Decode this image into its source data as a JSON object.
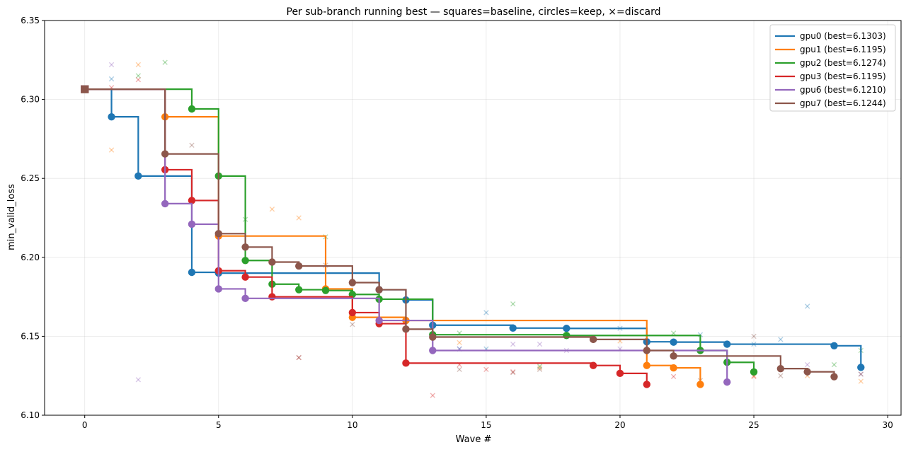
{
  "chart_data": {
    "type": "line",
    "title": "Per sub-branch running best — squares=baseline, circles=keep, ×=discard",
    "xlabel": "Wave #",
    "ylabel": "min_valid_loss",
    "xlim": [
      -1.5,
      30.5
    ],
    "ylim": [
      6.1,
      6.35
    ],
    "xticks": [
      0,
      5,
      10,
      15,
      20,
      25,
      30
    ],
    "yticks": [
      6.1,
      6.15,
      6.2,
      6.25,
      6.3,
      6.35
    ],
    "xtick_labels": [
      "0",
      "5",
      "10",
      "15",
      "20",
      "25",
      "30"
    ],
    "ytick_labels": [
      "6.10",
      "6.15",
      "6.20",
      "6.25",
      "6.30",
      "6.35"
    ],
    "grid": true,
    "legend_position": "top-right",
    "baseline": {
      "x": 0,
      "y": 6.3065
    },
    "series": [
      {
        "name": "gpu0 (best=6.1303)",
        "color": "#1f77b4",
        "keeps": [
          [
            1,
            6.289
          ],
          [
            2,
            6.2515
          ],
          [
            4,
            6.1905
          ],
          [
            5,
            6.19
          ],
          [
            11,
            6.1795
          ],
          [
            12,
            6.173
          ],
          [
            13,
            6.157
          ],
          [
            16,
            6.1552
          ],
          [
            18,
            6.155
          ],
          [
            21,
            6.1465
          ],
          [
            22,
            6.1463
          ],
          [
            24,
            6.145
          ],
          [
            28,
            6.144
          ],
          [
            29,
            6.1303
          ]
        ],
        "discards": [
          [
            1,
            6.313
          ],
          [
            15,
            6.165
          ],
          [
            23,
            6.151
          ],
          [
            25,
            6.145
          ],
          [
            26,
            6.148
          ],
          [
            27,
            6.169
          ],
          [
            14,
            6.142
          ],
          [
            15,
            6.142
          ],
          [
            20,
            6.155
          ]
        ]
      },
      {
        "name": "gpu1 (best=6.1195)",
        "color": "#ff7f0e",
        "keeps": [
          [
            3,
            6.289
          ],
          [
            5,
            6.2135
          ],
          [
            9,
            6.18
          ],
          [
            10,
            6.162
          ],
          [
            12,
            6.16
          ],
          [
            21,
            6.1315
          ],
          [
            22,
            6.13
          ],
          [
            23,
            6.1195
          ]
        ],
        "discards": [
          [
            1,
            6.268
          ],
          [
            2,
            6.322
          ],
          [
            7,
            6.2305
          ],
          [
            8,
            6.225
          ],
          [
            14,
            6.146
          ],
          [
            17,
            6.13
          ],
          [
            25,
            6.125
          ],
          [
            27,
            6.125
          ],
          [
            29,
            6.1215
          ],
          [
            20,
            6.147
          ]
        ]
      },
      {
        "name": "gpu2 (best=6.1274)",
        "color": "#2ca02c",
        "keeps": [
          [
            4,
            6.294
          ],
          [
            5,
            6.2515
          ],
          [
            6,
            6.198
          ],
          [
            7,
            6.183
          ],
          [
            8,
            6.1795
          ],
          [
            9,
            6.179
          ],
          [
            10,
            6.1765
          ],
          [
            11,
            6.1735
          ],
          [
            13,
            6.151
          ],
          [
            18,
            6.1505
          ],
          [
            23,
            6.141
          ],
          [
            24,
            6.1335
          ],
          [
            25,
            6.1274
          ]
        ],
        "discards": [
          [
            2,
            6.315
          ],
          [
            3,
            6.3235
          ],
          [
            6,
            6.224
          ],
          [
            9,
            6.213
          ],
          [
            16,
            6.1705
          ],
          [
            22,
            6.152
          ],
          [
            28,
            6.132
          ],
          [
            29,
            6.141
          ],
          [
            14,
            6.152
          ],
          [
            17,
            6.131
          ]
        ]
      },
      {
        "name": "gpu3 (best=6.1195)",
        "color": "#d62728",
        "keeps": [
          [
            3,
            6.2555
          ],
          [
            4,
            6.236
          ],
          [
            5,
            6.1915
          ],
          [
            6,
            6.1875
          ],
          [
            7,
            6.175
          ],
          [
            10,
            6.165
          ],
          [
            11,
            6.158
          ],
          [
            12,
            6.133
          ],
          [
            19,
            6.1315
          ],
          [
            20,
            6.1265
          ],
          [
            21,
            6.1195
          ]
        ],
        "discards": [
          [
            1,
            6.3075
          ],
          [
            2,
            6.3125
          ],
          [
            13,
            6.1125
          ],
          [
            8,
            6.1365
          ],
          [
            14,
            6.132
          ],
          [
            15,
            6.129
          ],
          [
            16,
            6.1275
          ],
          [
            25,
            6.1245
          ],
          [
            22,
            6.1245
          ]
        ]
      },
      {
        "name": "gpu6 (best=6.1210)",
        "color": "#9467bd",
        "keeps": [
          [
            3,
            6.234
          ],
          [
            4,
            6.221
          ],
          [
            5,
            6.18
          ],
          [
            6,
            6.174
          ],
          [
            11,
            6.16
          ],
          [
            13,
            6.141
          ],
          [
            24,
            6.121
          ]
        ],
        "discards": [
          [
            1,
            6.322
          ],
          [
            2,
            6.1225
          ],
          [
            14,
            6.142
          ],
          [
            16,
            6.145
          ],
          [
            17,
            6.145
          ],
          [
            18,
            6.141
          ],
          [
            20,
            6.142
          ],
          [
            27,
            6.132
          ],
          [
            29,
            6.126
          ]
        ]
      },
      {
        "name": "gpu7 (best=6.1244)",
        "color": "#8c564b",
        "keeps": [
          [
            3,
            6.2655
          ],
          [
            5,
            6.215
          ],
          [
            6,
            6.2065
          ],
          [
            7,
            6.197
          ],
          [
            8,
            6.1945
          ],
          [
            10,
            6.184
          ],
          [
            11,
            6.1795
          ],
          [
            12,
            6.1545
          ],
          [
            13,
            6.1495
          ],
          [
            19,
            6.148
          ],
          [
            21,
            6.141
          ],
          [
            22,
            6.1375
          ],
          [
            26,
            6.1295
          ],
          [
            27,
            6.1275
          ],
          [
            28,
            6.1244
          ]
        ],
        "discards": [
          [
            4,
            6.271
          ],
          [
            8,
            6.1365
          ],
          [
            9,
            6.195
          ],
          [
            10,
            6.1575
          ],
          [
            14,
            6.129
          ],
          [
            16,
            6.127
          ],
          [
            17,
            6.129
          ],
          [
            25,
            6.15
          ],
          [
            26,
            6.125
          ],
          [
            29,
            6.126
          ],
          [
            23,
            6.122
          ]
        ]
      }
    ]
  }
}
